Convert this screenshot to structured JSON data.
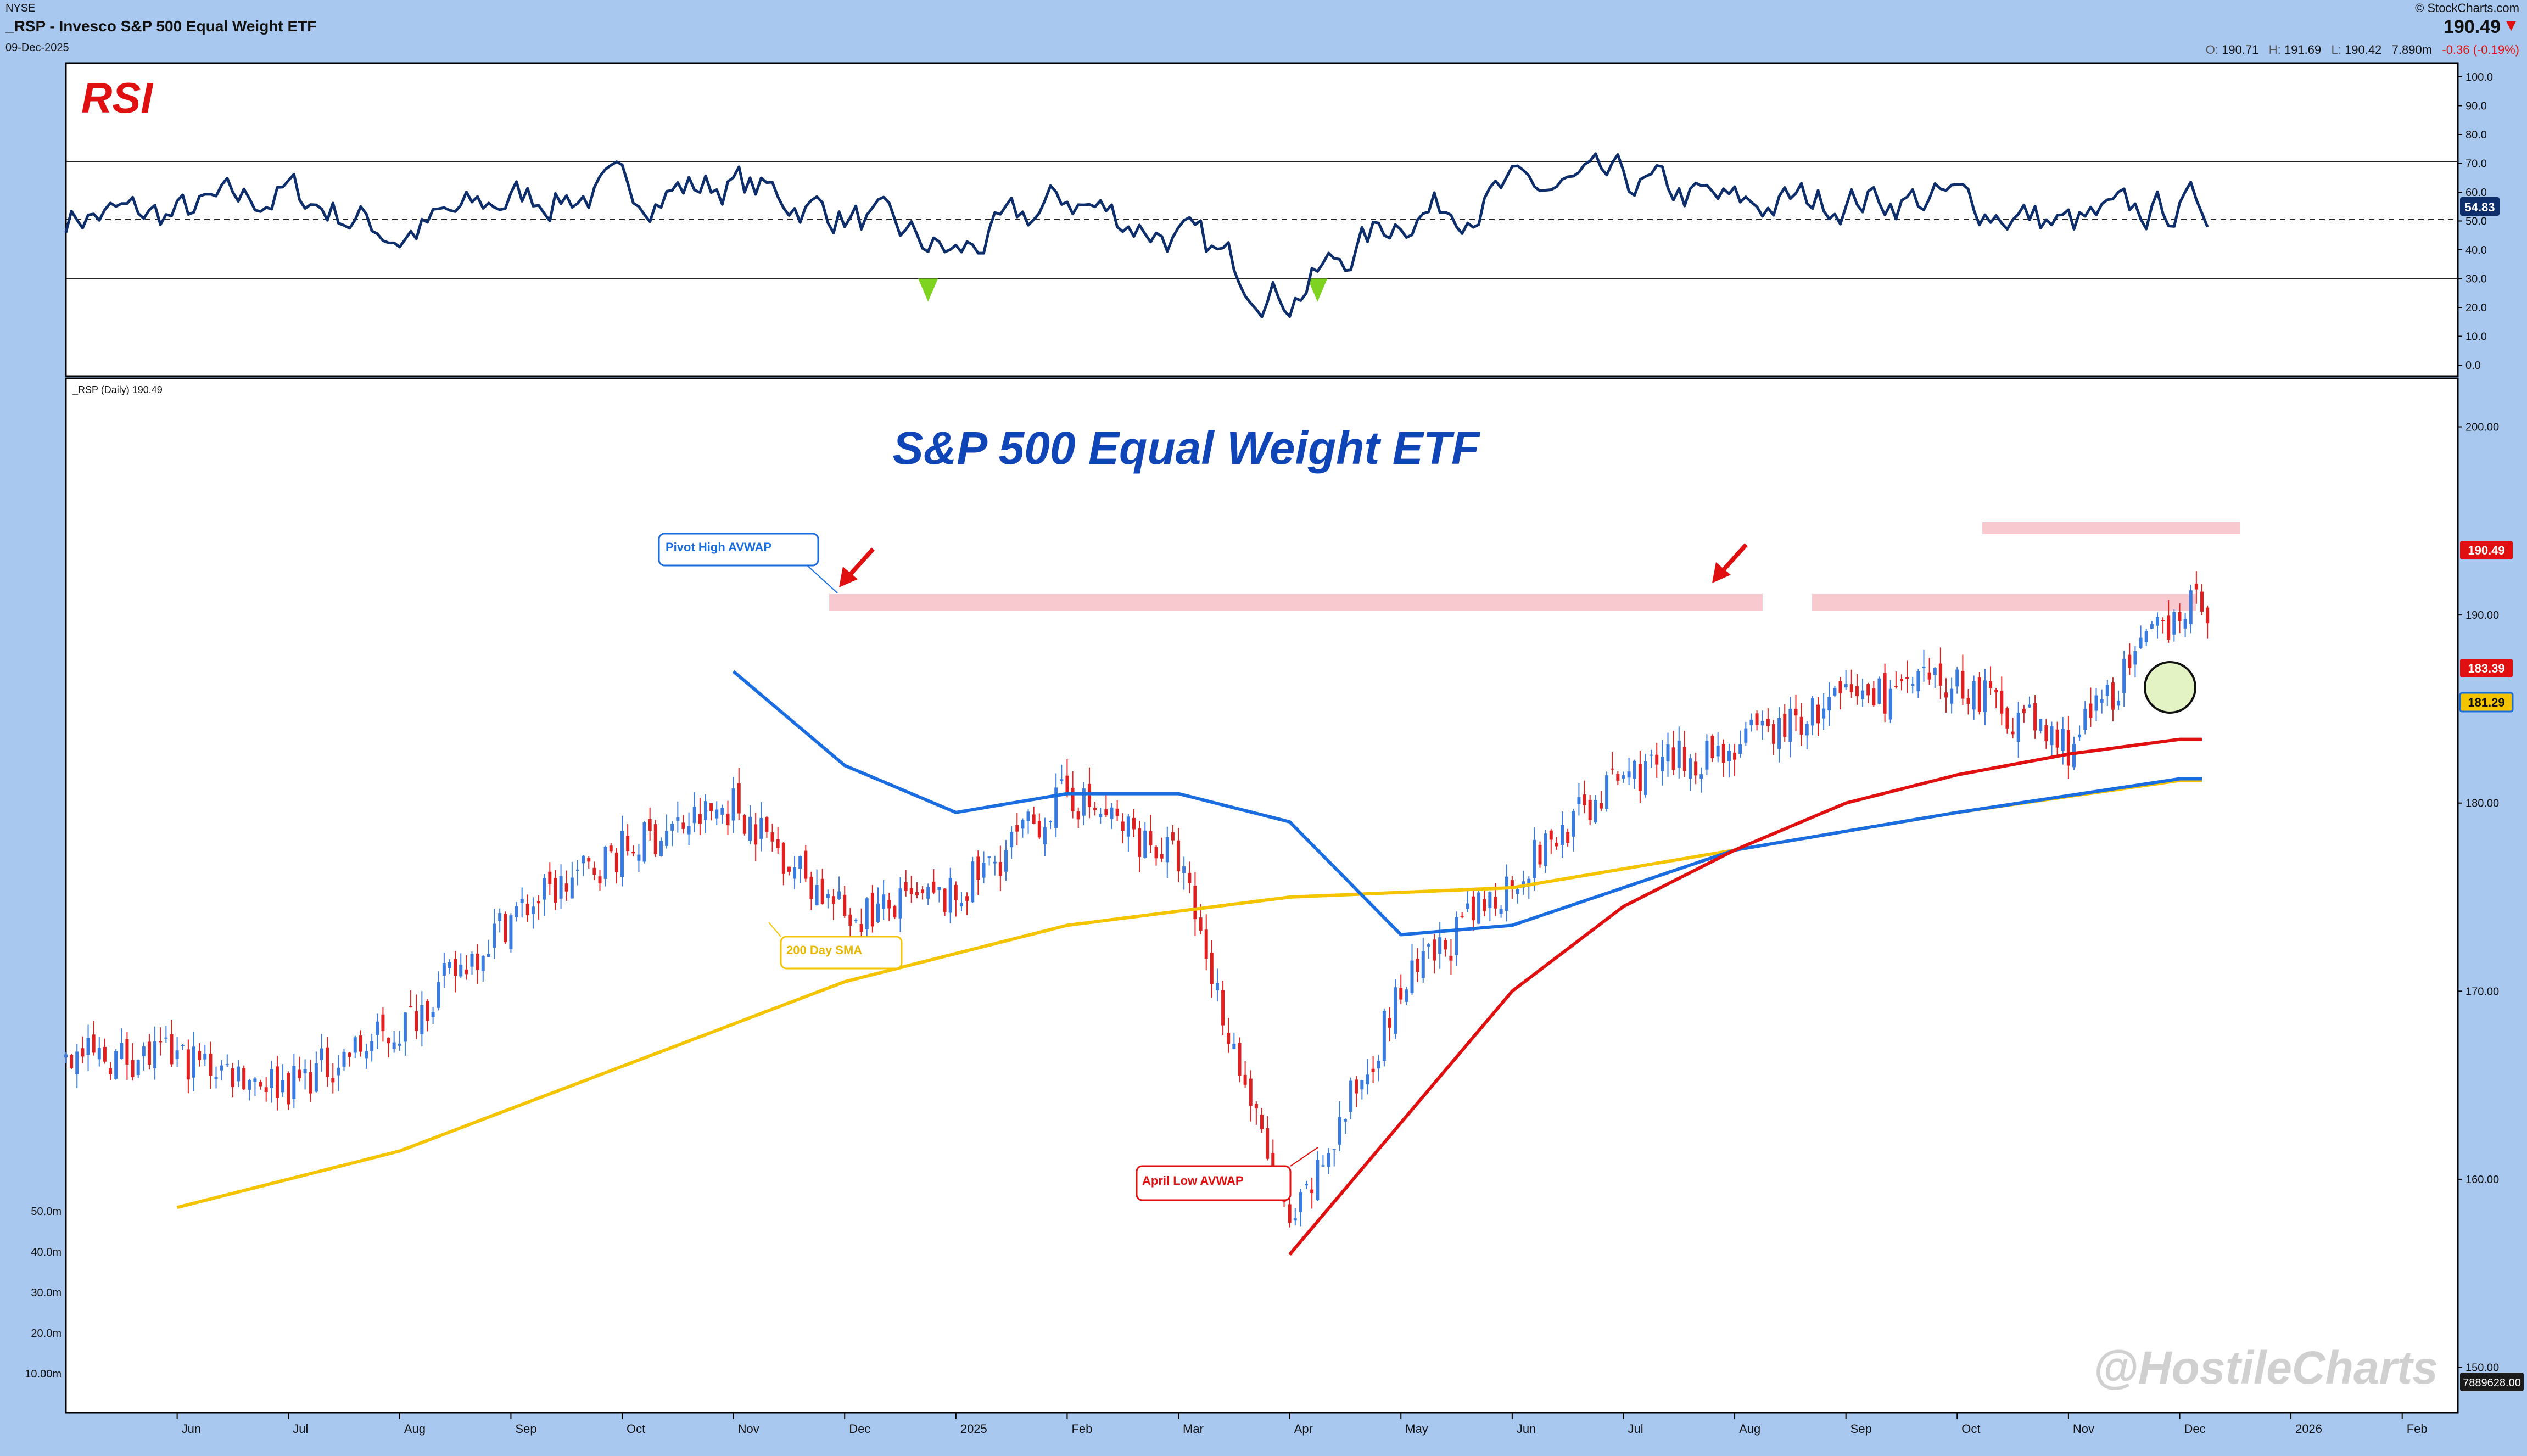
{
  "header": {
    "exchange": "NYSE",
    "title": "_RSP - Invesco S&P 500 Equal Weight ETF",
    "date": "09-Dec-2025",
    "brand": "© StockCharts.com",
    "last": "190.49",
    "open_label": "O:",
    "open": "190.71",
    "high_label": "H:",
    "high": "191.69",
    "low_label": "L:",
    "low": "190.42",
    "volume": "7.890m",
    "change": "-0.36 (-0.19%)"
  },
  "rsi_panel": {
    "label": "RSI",
    "axis_ticks": [
      "100.0",
      "90.0",
      "80.0",
      "70.0",
      "60.0",
      "50.0",
      "40.0",
      "30.0",
      "20.0",
      "10.0",
      "0.0"
    ],
    "current_value": "54.83"
  },
  "price_panel": {
    "legend": "_RSP (Daily) 190.49",
    "headline": "S&P 500 Equal Weight ETF",
    "watermark": "@HostileCharts",
    "annotations": {
      "pivot_high": "Pivot High AVWAP",
      "sma": "200 Day SMA",
      "april_low": "April Low AVWAP"
    },
    "price_ticks": [
      "200.00",
      "190.00",
      "180.00",
      "170.00",
      "160.00",
      "150.00"
    ],
    "volume_ticks": [
      "50.0m",
      "40.0m",
      "30.0m",
      "20.0m",
      "10.00m"
    ],
    "markers": {
      "price": "190.49",
      "red_avwap": "183.39",
      "blue_avwap": "181.29",
      "volume": "7889628.00"
    }
  },
  "x_axis": {
    "months": [
      "Jun",
      "Jul",
      "Aug",
      "Sep",
      "Oct",
      "Nov",
      "Dec",
      "2025",
      "Feb",
      "Mar",
      "Apr",
      "May",
      "Jun",
      "Jul",
      "Aug",
      "Sep",
      "Oct",
      "Nov",
      "Dec",
      "2026",
      "Feb"
    ],
    "year_2025": "2025"
  },
  "colors": {
    "rsi": "#0d2d6b",
    "up": "#3a7be0",
    "down": "#e02020",
    "sma": "#f5c400",
    "blue_avwap": "#1a6de0",
    "red_avwap": "#e01010",
    "resistance": "#f4a6b0",
    "headline": "#1045b8",
    "rsi_label": "#e01010"
  },
  "chart_data": {
    "type": "line",
    "series": [
      {
        "name": "RSI",
        "x": [
          "2024-06",
          "2024-07",
          "2024-08",
          "2024-09",
          "2024-10",
          "2024-11",
          "2024-12",
          "2025-01",
          "2025-02",
          "2025-03",
          "2025-04",
          "2025-05",
          "2025-06",
          "2025-07",
          "2025-08",
          "2025-09",
          "2025-10",
          "2025-11",
          "2025-12"
        ],
        "values": [
          52,
          60,
          45,
          58,
          60,
          63,
          52,
          38,
          58,
          44,
          24,
          52,
          60,
          63,
          55,
          58,
          57,
          48,
          54.83
        ]
      },
      {
        "name": "_RSP (Daily)",
        "x": [
          "2024-06",
          "2024-07",
          "2024-08",
          "2024-09",
          "2024-10",
          "2024-11",
          "2024-12",
          "2025-01",
          "2025-02",
          "2025-03",
          "2025-04",
          "2025-05",
          "2025-06",
          "2025-07",
          "2025-08",
          "2025-09",
          "2025-10",
          "2025-11",
          "2025-12"
        ],
        "values": [
          166.5,
          165,
          168,
          174,
          177.5,
          180,
          174,
          175,
          180.5,
          177,
          157,
          170,
          176,
          181.5,
          183,
          185.5,
          186.5,
          183,
          190.49
        ]
      },
      {
        "name": "200 Day SMA",
        "x": [
          "2024-06",
          "2024-08",
          "2024-10",
          "2024-12",
          "2025-02",
          "2025-04",
          "2025-06",
          "2025-08",
          "2025-10",
          "2025-12"
        ],
        "values": [
          158.5,
          161.5,
          166,
          170.5,
          173.5,
          175,
          175.5,
          177.5,
          179.5,
          181.2
        ]
      },
      {
        "name": "Pivot High AVWAP",
        "x": [
          "2024-11",
          "2024-12",
          "2025-01",
          "2025-02",
          "2025-03",
          "2025-04",
          "2025-05",
          "2025-06",
          "2025-08",
          "2025-10",
          "2025-12"
        ],
        "values": [
          187,
          182,
          179.5,
          180.5,
          180.5,
          179,
          173,
          173.5,
          177.5,
          179.5,
          181.29
        ]
      },
      {
        "name": "April Low AVWAP",
        "x": [
          "2025-04",
          "2025-05",
          "2025-06",
          "2025-07",
          "2025-08",
          "2025-09",
          "2025-10",
          "2025-11",
          "2025-12"
        ],
        "values": [
          156,
          163,
          170,
          174.5,
          177.5,
          180,
          181.5,
          182.6,
          183.39
        ]
      }
    ],
    "ylim_rsi": [
      0,
      100
    ],
    "ylim_price": [
      148,
      202
    ],
    "rsi_levels": [
      70,
      50,
      30
    ],
    "resistance_zones": [
      {
        "from": 187.5,
        "to": 188.5
      },
      {
        "from": 191.8,
        "to": 192.3
      },
      {
        "from": 186.6,
        "to": 187.5
      }
    ]
  }
}
